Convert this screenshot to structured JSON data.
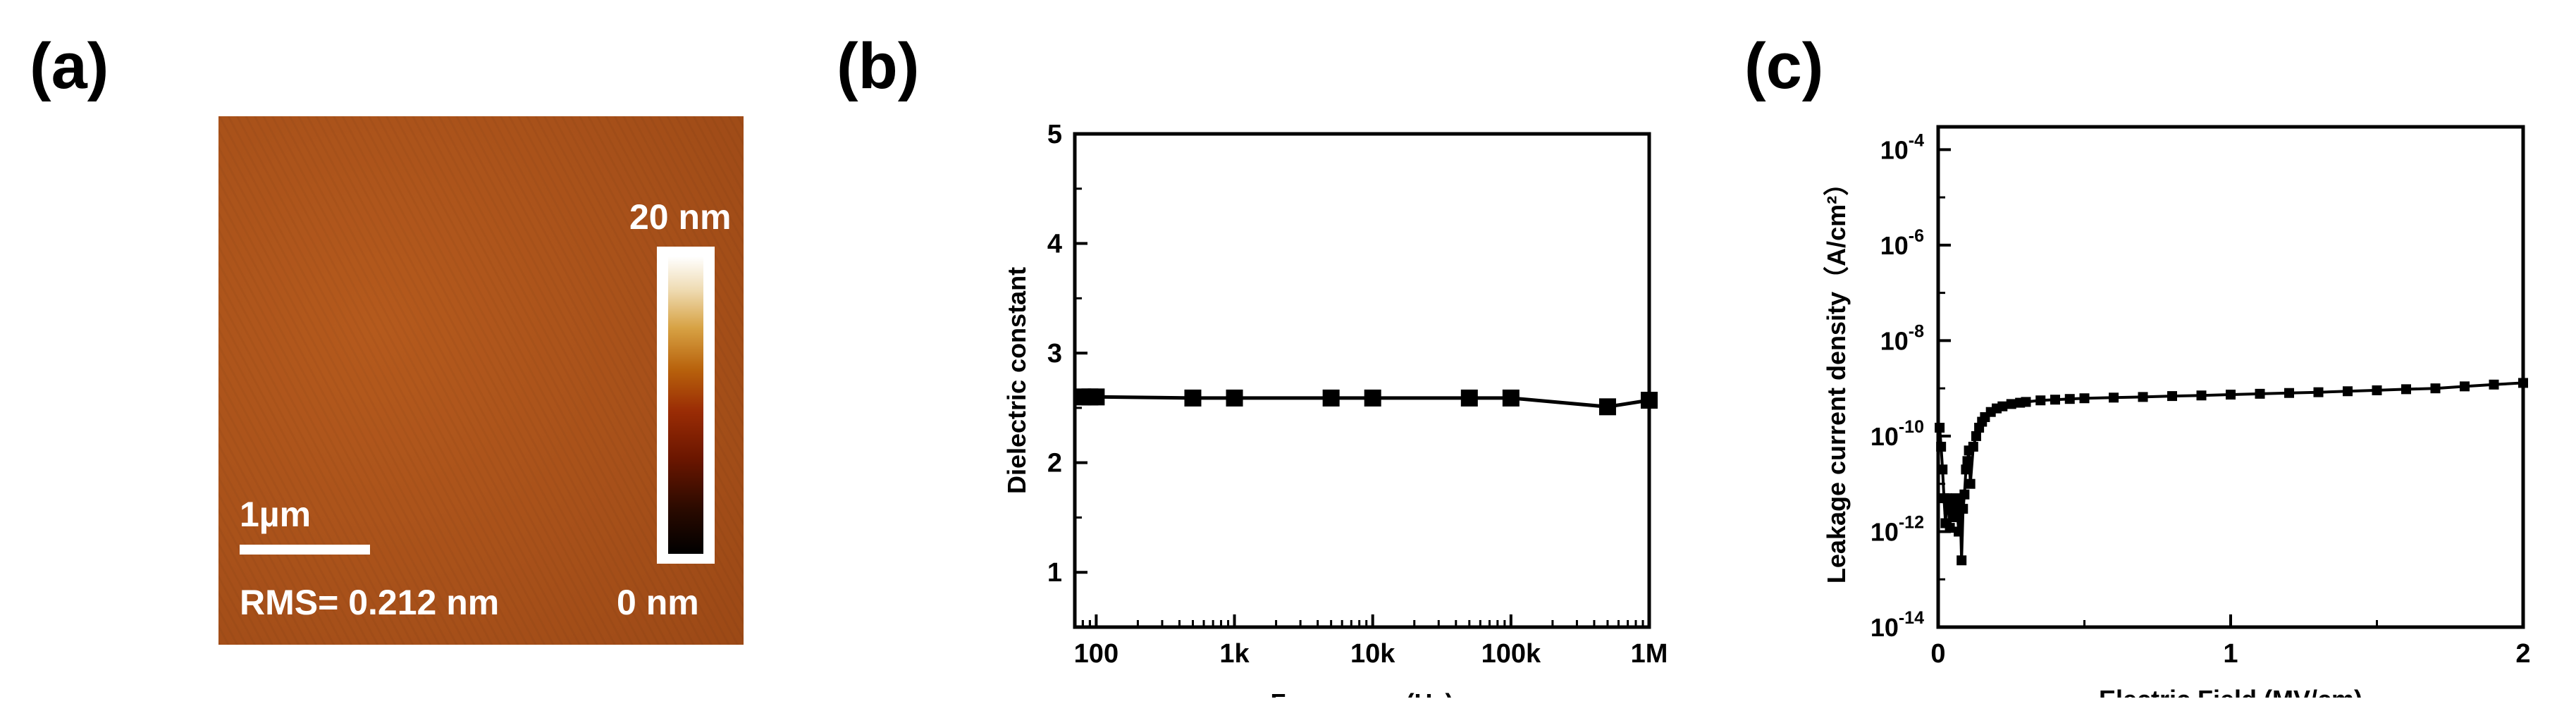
{
  "panels": {
    "a": {
      "label": "(a)",
      "scalebar_label": "1µm",
      "rms_label": "RMS= 0.212 nm",
      "colorbar_max": "20 nm",
      "colorbar_min": "0 nm"
    },
    "b": {
      "label": "(b)"
    },
    "c": {
      "label": "(c)"
    }
  },
  "chart_data": [
    {
      "type": "line",
      "panel": "b",
      "xlabel": "Frequency (Hz)",
      "ylabel": "Dielectric constant",
      "x_scale": "log",
      "xlim": [
        70,
        1000000
      ],
      "ylim": [
        0.5,
        5
      ],
      "x_ticks": [
        100,
        1000,
        10000,
        100000,
        1000000
      ],
      "x_tick_labels": [
        "100",
        "1k",
        "10k",
        "100k",
        "1M"
      ],
      "y_ticks": [
        1,
        2,
        3,
        4,
        5
      ],
      "y_tick_labels": [
        "1",
        "2",
        "3",
        "4",
        "5"
      ],
      "marker": "square",
      "color": "#000000",
      "series": [
        {
          "x": [
            80,
            90,
            100,
            500,
            1000,
            5000,
            10000,
            50000,
            100000,
            500000,
            1000000
          ],
          "y": [
            2.6,
            2.6,
            2.6,
            2.59,
            2.59,
            2.59,
            2.59,
            2.59,
            2.59,
            2.51,
            2.57
          ]
        }
      ]
    },
    {
      "type": "scatter",
      "panel": "c",
      "xlabel": "Electric Field (MV/cm)",
      "ylabel": "Leakage current density（A/cm²）",
      "y_scale": "log",
      "xlim": [
        0,
        2
      ],
      "ylim": [
        1e-14,
        0.0003
      ],
      "x_ticks": [
        0,
        1,
        2
      ],
      "x_tick_labels": [
        "0",
        "1",
        "2"
      ],
      "y_tick_exponents": [
        -14,
        -12,
        -10,
        -8,
        -6,
        -4
      ],
      "y_tick_base": "10",
      "marker": "square",
      "color": "#000000",
      "series": [
        {
          "x": [
            0.005,
            0.01,
            0.015,
            0.02,
            0.025,
            0.03,
            0.035,
            0.04,
            0.045,
            0.05,
            0.055,
            0.06,
            0.065,
            0.07,
            0.075,
            0.08,
            0.085,
            0.09,
            0.095,
            0.1,
            0.105,
            0.11,
            0.12,
            0.13,
            0.14,
            0.15,
            0.16,
            0.18,
            0.2,
            0.22,
            0.25,
            0.28,
            0.3,
            0.35,
            0.4,
            0.45,
            0.5,
            0.6,
            0.7,
            0.8,
            0.9,
            1.0,
            1.1,
            1.2,
            1.3,
            1.4,
            1.5,
            1.6,
            1.7,
            1.8,
            1.9,
            2.0
          ],
          "y": [
            1.5e-10,
            6e-11,
            2e-11,
            5e-12,
            1.5e-12,
            5e-12,
            3e-12,
            1.2e-12,
            4e-12,
            2e-12,
            3e-12,
            5e-12,
            3e-12,
            1e-12,
            4e-12,
            2.5e-13,
            3e-12,
            6e-12,
            2e-11,
            3e-11,
            5e-11,
            1e-11,
            6e-11,
            1e-10,
            1.5e-10,
            2e-10,
            2.5e-10,
            3.2e-10,
            3.8e-10,
            4.2e-10,
            4.7e-10,
            5e-10,
            5.2e-10,
            5.6e-10,
            5.8e-10,
            6e-10,
            6.2e-10,
            6.4e-10,
            6.6e-10,
            6.9e-10,
            7.1e-10,
            7.4e-10,
            7.7e-10,
            8e-10,
            8.3e-10,
            8.7e-10,
            9.1e-10,
            9.6e-10,
            1e-09,
            1.1e-09,
            1.2e-09,
            1.3e-09
          ]
        }
      ]
    }
  ]
}
